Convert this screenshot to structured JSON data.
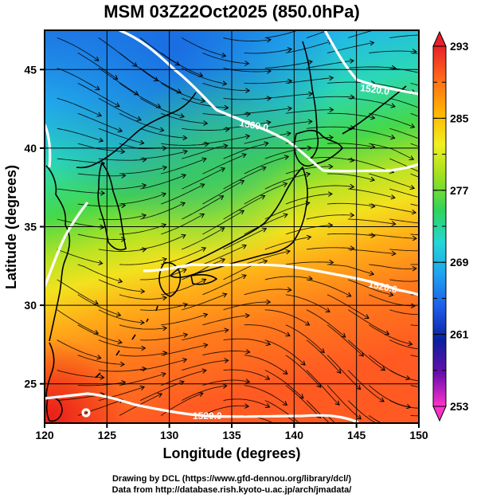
{
  "title": "MSM 03Z22Oct2025 (850.0hPa)",
  "axes": {
    "xlabel": "Longitude (degrees)",
    "ylabel": "Latitude  (degrees)",
    "xlim": [
      120,
      150
    ],
    "ylim": [
      22.5,
      47.5
    ],
    "xticks": [
      "120",
      "125",
      "130",
      "135",
      "140",
      "145",
      "150"
    ],
    "yticks": [
      "25",
      "30",
      "35",
      "40",
      "45"
    ],
    "grid": true
  },
  "colorbar": {
    "ticks": [
      "293",
      "285",
      "277",
      "269",
      "261",
      "253"
    ],
    "range": [
      253,
      293
    ],
    "colors": [
      "#ff33cc",
      "#6a0dad",
      "#0b1f9e",
      "#1e5ae6",
      "#1fa0f0",
      "#25d6d6",
      "#2fd35a",
      "#9ae020",
      "#f0f020",
      "#ffb300",
      "#ff6a1a",
      "#e8202a"
    ]
  },
  "contours": [
    {
      "label": "1560.0"
    },
    {
      "label": "1520.0"
    },
    {
      "label": "1520.0"
    },
    {
      "label": "1520.0"
    }
  ],
  "credits": {
    "line1": "Drawing by DCL (https://www.gfd-dennou.org/library/dcl/)",
    "line2": "Data from http://database.rish.kyoto-u.ac.jp/arch/jmadata/"
  }
}
